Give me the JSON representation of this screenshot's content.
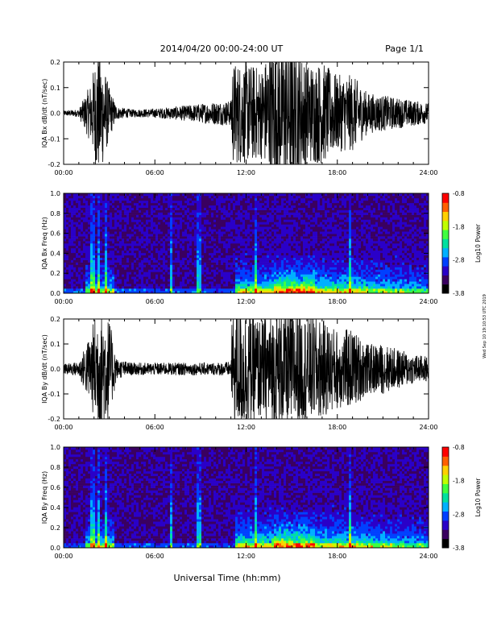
{
  "header": {
    "date_range": "2014/04/20  00:00-24:00 UT",
    "page": "Page 1/1"
  },
  "footer": {
    "xlabel": "Universal Time (hh:mm)"
  },
  "side_stamp": "Wed Sep 10 19:10:53 UTC 2019",
  "x_ticks": [
    "00:00",
    "06:00",
    "12:00",
    "18:00",
    "24:00"
  ],
  "colorbar": {
    "label": "Log10 Power",
    "ticks": [
      "-0.8",
      "-1.8",
      "-2.8",
      "-3.8"
    ],
    "colormap": [
      "#000000",
      "#3a0060",
      "#2a00c8",
      "#0040ff",
      "#00b0ff",
      "#00e0a0",
      "#40ff40",
      "#c0ff00",
      "#ffd000",
      "#ff6000",
      "#ff0000"
    ]
  },
  "chart_data": [
    {
      "type": "line",
      "panel": "IQA Bx dB/dt",
      "ylabel": "IQA Bx dB/dt (nT/sec)",
      "xlim": [
        0,
        24
      ],
      "ylim": [
        -0.2,
        0.2
      ],
      "y_ticks": [
        "-0.2",
        "-0.1",
        "0.0",
        "0.1",
        "0.2"
      ],
      "activity_envelope": {
        "x": [
          0,
          1,
          1.8,
          2.2,
          2.6,
          3.0,
          3.5,
          4.5,
          6,
          8,
          10,
          11,
          11.1,
          12,
          13,
          14,
          15,
          16,
          17,
          18,
          19,
          20,
          21,
          22,
          23,
          24
        ],
        "amplitude": [
          0.01,
          0.015,
          0.12,
          0.25,
          0.2,
          0.1,
          0.025,
          0.015,
          0.018,
          0.03,
          0.045,
          0.05,
          0.2,
          0.2,
          0.18,
          0.3,
          0.3,
          0.2,
          0.2,
          0.15,
          0.15,
          0.08,
          0.07,
          0.06,
          0.05,
          0.04
        ]
      }
    },
    {
      "type": "heatmap",
      "panel": "IQA Bx Freq",
      "ylabel": "IQA Bx Freq (Hz)",
      "xlim": [
        0,
        24
      ],
      "ylim": [
        0,
        1.0
      ],
      "y_ticks": [
        "0.0",
        "0.2",
        "0.4",
        "0.6",
        "0.8",
        "1.0"
      ],
      "zlim": [
        -3.8,
        -0.8
      ],
      "vertical_streaks_hours": [
        1.9,
        2.3,
        2.8,
        7.1,
        8.9,
        12.7,
        18.9
      ]
    },
    {
      "type": "line",
      "panel": "IQA By dB/dt",
      "ylabel": "IQA By dB/dt (nT/sec)",
      "xlim": [
        0,
        24
      ],
      "ylim": [
        -0.2,
        0.2
      ],
      "y_ticks": [
        "-0.2",
        "-0.1",
        "0.0",
        "0.1",
        "0.2"
      ],
      "activity_envelope": {
        "x": [
          0,
          1,
          1.8,
          2.2,
          2.6,
          3.0,
          3.5,
          4.5,
          6,
          8,
          10,
          11,
          11.1,
          12,
          13,
          14,
          15,
          16,
          17,
          18,
          19,
          20,
          21,
          22,
          23,
          24
        ],
        "amplitude": [
          0.02,
          0.03,
          0.15,
          0.25,
          0.25,
          0.2,
          0.04,
          0.025,
          0.025,
          0.025,
          0.025,
          0.03,
          0.25,
          0.25,
          0.2,
          0.25,
          0.25,
          0.22,
          0.2,
          0.16,
          0.16,
          0.1,
          0.1,
          0.08,
          0.06,
          0.05
        ]
      }
    },
    {
      "type": "heatmap",
      "panel": "IQA By Freq",
      "ylabel": "IQA By Freq (Hz)",
      "xlim": [
        0,
        24
      ],
      "ylim": [
        0,
        1.0
      ],
      "y_ticks": [
        "0.0",
        "0.2",
        "0.4",
        "0.6",
        "0.8",
        "1.0"
      ],
      "zlim": [
        -3.8,
        -0.8
      ],
      "vertical_streaks_hours": [
        1.9,
        2.3,
        2.8,
        7.1,
        8.9,
        12.7,
        18.9
      ]
    }
  ]
}
